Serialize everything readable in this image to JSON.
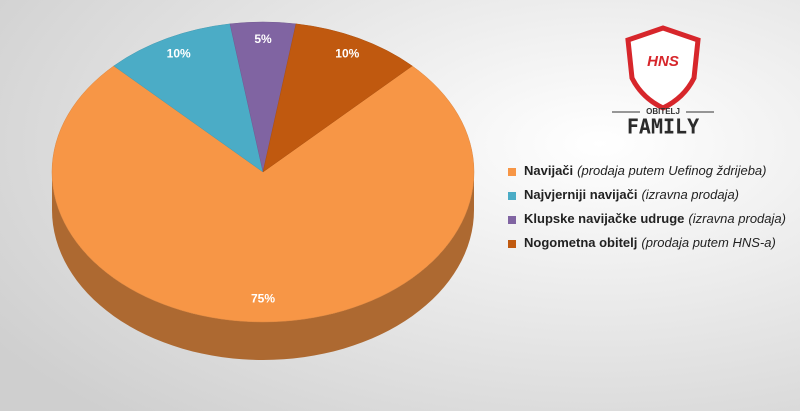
{
  "chart_data": {
    "type": "pie",
    "categories": [
      "Navijači",
      "Najvjerniji navijači",
      "Klupske navijačke udruge",
      "Nogometna obitelj"
    ],
    "category_notes": [
      "(prodaja putem Uefinog ždrijeba)",
      "(izravna prodaja)",
      "(izravna prodaja)",
      "(prodaja putem HNS-a)"
    ],
    "values": [
      75,
      10,
      5,
      10
    ],
    "value_labels": [
      "75%",
      "10%",
      "5%",
      "10%"
    ],
    "colors": [
      "#f79646",
      "#4bacc6",
      "#8064a2",
      "#c0590f"
    ],
    "legend": "right"
  },
  "logo": {
    "mark": "HNS",
    "subtitle": "OBITELJ",
    "title": "FAMILY"
  }
}
